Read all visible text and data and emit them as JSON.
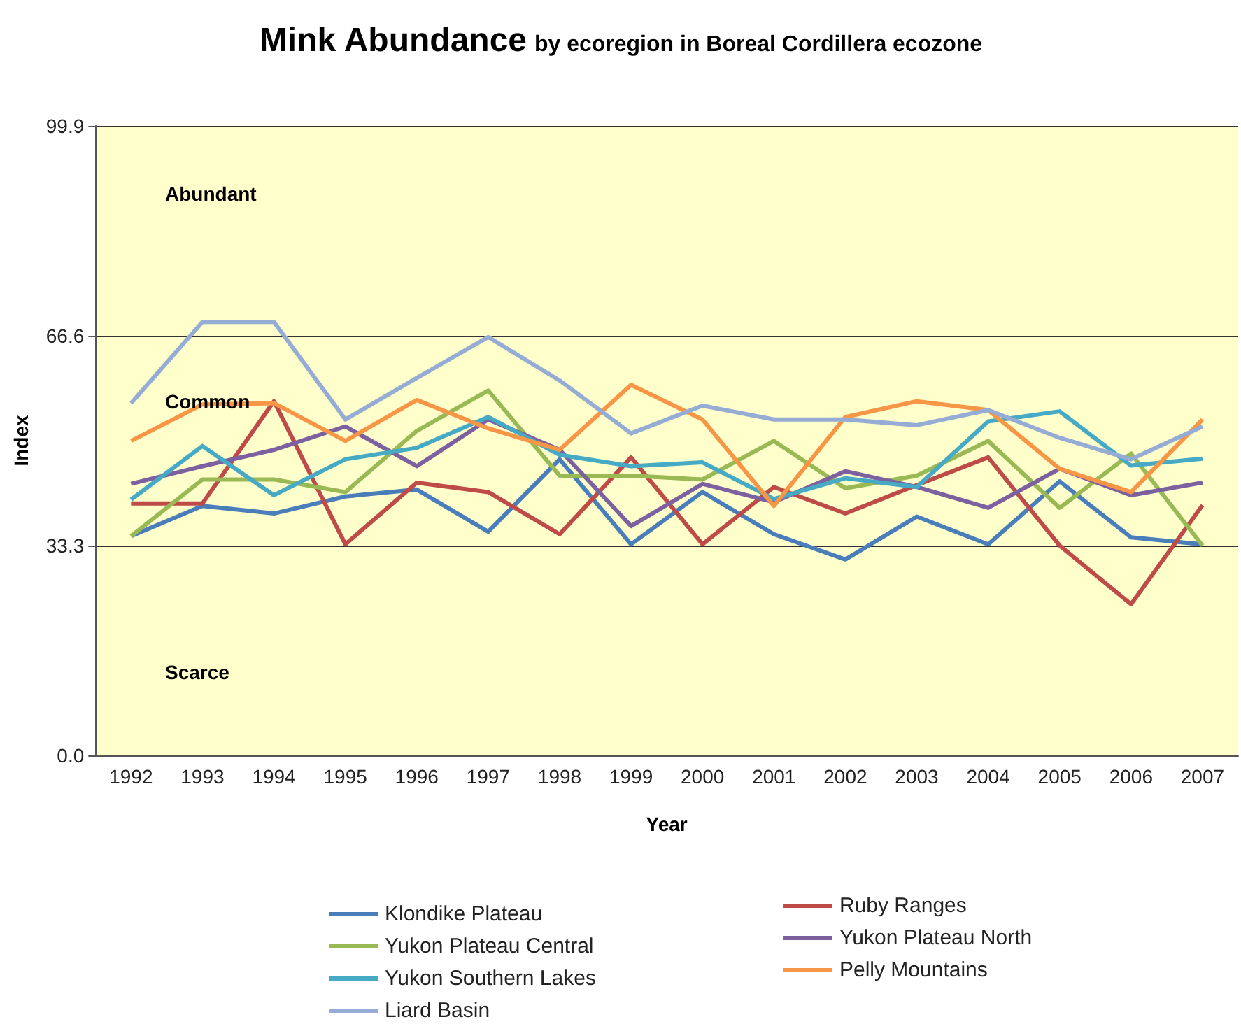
{
  "chart_data": {
    "type": "line",
    "title": "Mink Abundance",
    "subtitle": "by ecoregion in Boreal Cordillera ecozone",
    "xlabel": "Year",
    "ylabel": "Index",
    "categories": [
      "1992",
      "1993",
      "1994",
      "1995",
      "1996",
      "1997",
      "1998",
      "1999",
      "2000",
      "2001",
      "2002",
      "2003",
      "2004",
      "2005",
      "2006",
      "2007"
    ],
    "series": [
      {
        "name": "Klondike Plateau",
        "color": "#4a7ebb",
        "values": [
          34.8,
          39.6,
          38.4,
          41.1,
          42.2,
          35.5,
          47,
          33.5,
          41.8,
          35.1,
          31.1,
          37.9,
          33.5,
          43.5,
          34.6,
          33.5
        ]
      },
      {
        "name": "Ruby Ranges",
        "color": "#be4b48",
        "values": [
          40,
          40,
          56.2,
          33.5,
          43.3,
          41.8,
          35.1,
          47.3,
          33.5,
          42.6,
          38.4,
          42.9,
          47.3,
          33.3,
          24,
          39.7
        ]
      },
      {
        "name": "Yukon Plateau Central",
        "color": "#98b954",
        "values": [
          34.8,
          43.8,
          43.8,
          41.8,
          51.5,
          57.9,
          44.4,
          44.4,
          43.8,
          49.9,
          42.4,
          44.4,
          49.9,
          39.3,
          47.9,
          33.3
        ]
      },
      {
        "name": "Yukon Plateau North",
        "color": "#7d60a0",
        "values": [
          43.1,
          45.9,
          48.5,
          52.2,
          45.9,
          53.3,
          48.5,
          36.4,
          43.1,
          40.2,
          45.1,
          42.6,
          39.3,
          45.5,
          41.3,
          43.3
        ]
      },
      {
        "name": "Yukon Southern Lakes",
        "color": "#46aac5",
        "values": [
          40.6,
          49.1,
          41.3,
          47,
          48.8,
          53.7,
          47.7,
          45.9,
          46.5,
          40.7,
          44,
          42.6,
          53,
          54.6,
          46,
          47.1
        ]
      },
      {
        "name": "Pelly Mountains",
        "color": "#f79646",
        "values": [
          49.9,
          55.7,
          55.9,
          49.9,
          56.4,
          51.9,
          48.5,
          58.8,
          53.3,
          39.6,
          53.7,
          56.2,
          54.8,
          45.5,
          41.8,
          53.3
        ]
      },
      {
        "name": "Liard Basin",
        "color": "#95acd4",
        "values": [
          55.9,
          68.8,
          68.8,
          53.3,
          59.9,
          66.4,
          59.5,
          51.1,
          55.5,
          53.3,
          53.3,
          52.4,
          54.8,
          50.4,
          47,
          52.2
        ]
      }
    ],
    "ylim": [
      0,
      99.9
    ],
    "yticks": [
      {
        "value": 0,
        "label": "0.0"
      },
      33.3,
      66.6,
      99.9
    ],
    "grid": "y",
    "legend": "bottom",
    "marker": "none",
    "line_style": "solid",
    "annotations": [
      "Abundant",
      "Common",
      "Scarce"
    ]
  }
}
